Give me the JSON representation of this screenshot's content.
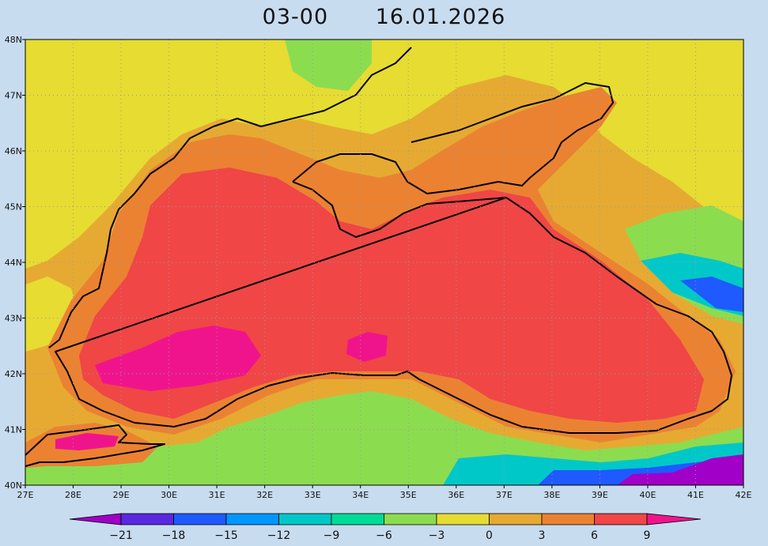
{
  "title": {
    "run": "03-00",
    "date": "16.01.2026"
  },
  "chart_data": {
    "type": "heatmap",
    "subject": "filled contour field over the Black Sea region with coastline overlay",
    "xlabel": "",
    "ylabel": "",
    "xlim": [
      27,
      42
    ],
    "ylim": [
      40,
      48
    ],
    "grid": true,
    "x_tick_labels": [
      "27E",
      "28E",
      "29E",
      "30E",
      "31E",
      "32E",
      "33E",
      "34E",
      "35E",
      "36E",
      "37E",
      "38E",
      "39E",
      "40E",
      "41E",
      "42E"
    ],
    "y_tick_labels": [
      "40N",
      "41N",
      "42N",
      "43N",
      "44N",
      "45N",
      "46N",
      "47N",
      "48N"
    ],
    "colorbar": {
      "orientation": "horizontal",
      "placement": "bottom",
      "tick_labels": [
        "−21",
        "−18",
        "−15",
        "−12",
        "−9",
        "−6",
        "−3",
        "0",
        "3",
        "6",
        "9"
      ],
      "colors": [
        "#a000c8",
        "#5a28e0",
        "#1e5aff",
        "#0096ff",
        "#00c8c8",
        "#00dc96",
        "#8cdc50",
        "#e6dc32",
        "#e6aa32",
        "#eb8232",
        "#f04646",
        "#f0148c"
      ]
    },
    "regions": [
      {
        "name": "background",
        "level": "0 to 3",
        "color": "#e6aa32"
      },
      {
        "name": "sea-band",
        "level": "3 to 6",
        "color": "#eb8232"
      },
      {
        "name": "open-sea",
        "level": "6 to 9",
        "color": "#f04646"
      },
      {
        "name": "core-west",
        "level": "above 9",
        "color": "#f0148c"
      },
      {
        "name": "core-central",
        "level": "above 9",
        "color": "#f0148c"
      },
      {
        "name": "marmara-core",
        "level": "above 9",
        "color": "#f0148c"
      },
      {
        "name": "land-north",
        "level": "-3 to 0",
        "color": "#e6dc32"
      },
      {
        "name": "land-south",
        "level": "-6 to -3",
        "color": "#8cdc50"
      },
      {
        "name": "caucasus-cold",
        "level": "-12 to -6",
        "color": "#00c8c8"
      },
      {
        "name": "anatolia-cold",
        "level": "-21 to -15",
        "color": "#a000c8"
      }
    ]
  }
}
